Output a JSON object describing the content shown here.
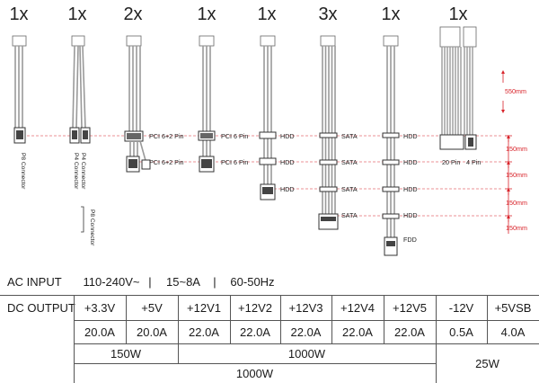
{
  "cables": {
    "counts": [
      "1x",
      "1x",
      "2x",
      "1x",
      "1x",
      "3x",
      "1x",
      "1x"
    ],
    "p8_connector": "P8 Connector",
    "p4_connector_a": "P4 Connector",
    "p4_connector_b": "P4 Connector",
    "pci_6_2_pin": "PCI 6+2 Pin",
    "pci_6_pin": "PCI 6 Pin",
    "hdd": "HDD",
    "sata": "SATA",
    "fdd": "FDD",
    "pin20": "20 Pin",
    "pin4": "4 Pin"
  },
  "dimensions": {
    "d550": "550mm",
    "d150": "150mm"
  },
  "spec": {
    "ac_label": "AC INPUT",
    "ac_voltage": "110-240V~",
    "sep": "|",
    "ac_current": "15~8A",
    "ac_freq": "60-50Hz",
    "dc_label": "DC OUTPUT",
    "rails": [
      {
        "name": "+3.3V",
        "amps": "20.0A"
      },
      {
        "name": "+5V",
        "amps": "20.0A"
      },
      {
        "name": "+12V1",
        "amps": "22.0A"
      },
      {
        "name": "+12V2",
        "amps": "22.0A"
      },
      {
        "name": "+12V3",
        "amps": "22.0A"
      },
      {
        "name": "+12V4",
        "amps": "22.0A"
      },
      {
        "name": "+12V5",
        "amps": "22.0A"
      },
      {
        "name": "-12V",
        "amps": "0.5A"
      },
      {
        "name": "+5VSB",
        "amps": "4.0A"
      }
    ],
    "w150": "150W",
    "w1000a": "1000W",
    "w1000b": "1000W",
    "w25": "25W"
  },
  "colors": {
    "dimension": "#d8232a",
    "grid": "#555555",
    "wire": "#9a9a9a"
  }
}
